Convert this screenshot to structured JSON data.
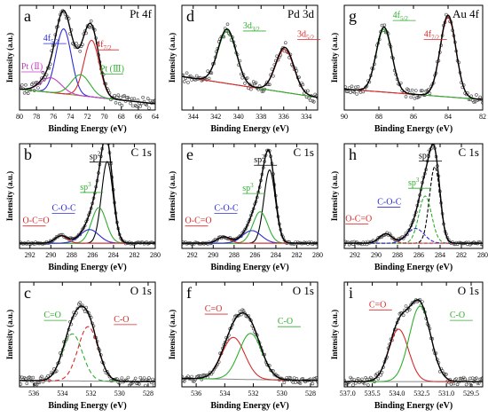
{
  "figure": {
    "ylabel": "Intensity (a.u.)",
    "xlabel": "Binding Energy (eV)"
  },
  "chart_data": [
    {
      "id": "a",
      "type": "line",
      "title": "Pt 4f",
      "xlabel": "Binding Energy (eV)",
      "ylabel": "Intensity (a.u.)",
      "xlim": [
        80,
        64
      ],
      "xticks": [
        80,
        78,
        76,
        74,
        72,
        70,
        68,
        66,
        64
      ],
      "ylim": [
        0,
        1
      ],
      "series": [
        {
          "color": "#000000",
          "kind": "envelope",
          "peaks": [
            {
              "c": 74.8,
              "h": 0.68,
              "w": 0.9
            },
            {
              "c": 71.5,
              "h": 0.58,
              "w": 0.9
            },
            {
              "c": 76.3,
              "h": 0.16,
              "w": 1.2
            },
            {
              "c": 72.8,
              "h": 0.22,
              "w": 1.1
            }
          ]
        },
        {
          "color": "#2b2bd6",
          "kind": "peak",
          "peaks": [
            {
              "c": 74.8,
              "h": 0.62,
              "w": 0.9
            }
          ]
        },
        {
          "color": "#d62a2a",
          "kind": "peak",
          "peaks": [
            {
              "c": 71.5,
              "h": 0.54,
              "w": 0.9
            }
          ]
        },
        {
          "color": "#c23ec2",
          "kind": "peak",
          "peaks": [
            {
              "c": 76.3,
              "h": 0.14,
              "w": 1.2
            }
          ]
        },
        {
          "color": "#2fae2f",
          "kind": "peak",
          "peaks": [
            {
              "c": 72.8,
              "h": 0.2,
              "w": 1.1
            }
          ]
        }
      ],
      "baseline": {
        "color": "#8a8a3a",
        "start": 0.2,
        "end": 0.06
      },
      "noise": 0.05,
      "annotations": [
        {
          "text": "4f",
          "sub": "5/2",
          "color": "#2b2bd6",
          "x": 77.2,
          "y": 0.66
        },
        {
          "text": "4f",
          "sub": "7/2",
          "color": "#d62a2a",
          "x": 71.0,
          "y": 0.6
        },
        {
          "text": "Pt (Ⅱ)",
          "color": "#c23ec2",
          "x": 79.8,
          "y": 0.39
        },
        {
          "text": "Pt (Ⅲ)",
          "color": "#2fae2f",
          "x": 70.5,
          "y": 0.37
        }
      ]
    },
    {
      "id": "d",
      "type": "line",
      "title": "Pd 3d",
      "xlabel": "Binding Energy (eV)",
      "ylabel": "Intensity (a.u.)",
      "xlim": [
        345,
        333
      ],
      "xticks": [
        344,
        342,
        340,
        338,
        336,
        334
      ],
      "ylim": [
        0,
        1
      ],
      "series": [
        {
          "color": "#000000",
          "kind": "envelope",
          "peaks": [
            {
              "c": 341.0,
              "h": 0.52,
              "w": 0.8
            },
            {
              "c": 335.9,
              "h": 0.43,
              "w": 0.8
            }
          ]
        },
        {
          "color": "#2fae2f",
          "kind": "peak",
          "peaks": [
            {
              "c": 341.0,
              "h": 0.5,
              "w": 0.8
            }
          ]
        },
        {
          "color": "#d62a2a",
          "kind": "peak",
          "peaks": [
            {
              "c": 335.9,
              "h": 0.41,
              "w": 0.8
            }
          ]
        }
      ],
      "baseline": {
        "color": "#8a3a3a",
        "start": 0.32,
        "end": 0.12
      },
      "noise": 0.05,
      "annotations": [
        {
          "text": "3d",
          "sub": "3/2",
          "color": "#2fae2f",
          "x": 339.6,
          "y": 0.78
        },
        {
          "text": "3d",
          "sub": "5/2",
          "color": "#d62a2a",
          "x": 334.8,
          "y": 0.7
        }
      ]
    },
    {
      "id": "g",
      "type": "line",
      "title": "Au 4f",
      "xlabel": "Binding Energy (eV)",
      "ylabel": "Intensity (a.u.)",
      "xlim": [
        90,
        82
      ],
      "xticks": [
        90,
        88,
        86,
        84,
        82
      ],
      "ylim": [
        0,
        1
      ],
      "series": [
        {
          "color": "#000000",
          "kind": "envelope",
          "peaks": [
            {
              "c": 87.7,
              "h": 0.62,
              "w": 0.45
            },
            {
              "c": 84.0,
              "h": 0.78,
              "w": 0.45
            }
          ]
        },
        {
          "color": "#2fae2f",
          "kind": "peak",
          "peaks": [
            {
              "c": 87.7,
              "h": 0.6,
              "w": 0.45
            }
          ]
        },
        {
          "color": "#d62a2a",
          "kind": "peak",
          "peaks": [
            {
              "c": 84.0,
              "h": 0.76,
              "w": 0.45
            }
          ]
        }
      ],
      "baseline": {
        "color": "#8a3a3a",
        "start": 0.2,
        "end": 0.1
      },
      "noise": 0.04,
      "annotations": [
        {
          "text": "4f",
          "sub": "5/2",
          "color": "#2fae2f",
          "x": 87.2,
          "y": 0.88
        },
        {
          "text": "4f",
          "sub": "7/2",
          "color": "#d62a2a",
          "x": 85.4,
          "y": 0.7
        }
      ]
    },
    {
      "id": "b",
      "type": "line",
      "title": "C 1s",
      "xlabel": "Binding Energy (eV)",
      "ylabel": "Intensity (a.u.)",
      "xlim": [
        293,
        280
      ],
      "xticks": [
        292,
        290,
        288,
        286,
        284,
        282,
        280
      ],
      "ylim": [
        0,
        1
      ],
      "series": [
        {
          "color": "#000000",
          "kind": "envelope",
          "peaks": [
            {
              "c": 284.6,
              "h": 0.8,
              "w": 0.55
            },
            {
              "c": 285.4,
              "h": 0.34,
              "w": 0.7
            },
            {
              "c": 286.3,
              "h": 0.13,
              "w": 0.9
            },
            {
              "c": 289.0,
              "h": 0.07,
              "w": 0.6
            }
          ]
        },
        {
          "color": "#000000",
          "kind": "peak",
          "peaks": [
            {
              "c": 284.6,
              "h": 0.78,
              "w": 0.55
            }
          ]
        },
        {
          "color": "#2fae2f",
          "kind": "peak",
          "peaks": [
            {
              "c": 285.4,
              "h": 0.34,
              "w": 0.7
            }
          ]
        },
        {
          "color": "#2b2bd6",
          "kind": "peak",
          "peaks": [
            {
              "c": 286.3,
              "h": 0.13,
              "w": 0.9
            }
          ]
        },
        {
          "color": "#d62a2a",
          "kind": "peak",
          "peaks": [
            {
              "c": 289.0,
              "h": 0.07,
              "w": 0.6
            }
          ]
        }
      ],
      "baseline": {
        "color": "#888888",
        "start": 0.05,
        "end": 0.05
      },
      "noise": 0.01,
      "annotations": [
        {
          "text": "sp",
          "sup": "2",
          "color": "#000000",
          "x": 286.3,
          "y": 0.85
        },
        {
          "text": "sp",
          "sup": "3",
          "color": "#2fae2f",
          "x": 287.2,
          "y": 0.56
        },
        {
          "text": "C-O-C",
          "color": "#2b2bd6",
          "x": 289.9,
          "y": 0.36
        },
        {
          "text": "O-C=O",
          "color": "#d62a2a",
          "x": 292.7,
          "y": 0.24
        }
      ]
    },
    {
      "id": "e",
      "type": "line",
      "title": "C 1s",
      "xlabel": "Binding Energy (eV)",
      "ylabel": "Intensity (a.u.)",
      "xlim": [
        293,
        280
      ],
      "xticks": [
        292,
        290,
        288,
        286,
        284,
        282,
        280
      ],
      "ylim": [
        0,
        1
      ],
      "series": [
        {
          "color": "#000000",
          "kind": "envelope",
          "peaks": [
            {
              "c": 284.6,
              "h": 0.72,
              "w": 0.55
            },
            {
              "c": 285.5,
              "h": 0.3,
              "w": 0.7
            },
            {
              "c": 286.3,
              "h": 0.12,
              "w": 0.9
            },
            {
              "c": 289.0,
              "h": 0.06,
              "w": 0.6
            }
          ]
        },
        {
          "color": "#000000",
          "kind": "peak",
          "peaks": [
            {
              "c": 284.6,
              "h": 0.7,
              "w": 0.55
            }
          ]
        },
        {
          "color": "#2fae2f",
          "kind": "peak",
          "peaks": [
            {
              "c": 285.5,
              "h": 0.3,
              "w": 0.7
            }
          ]
        },
        {
          "color": "#2b2bd6",
          "kind": "peak",
          "peaks": [
            {
              "c": 286.3,
              "h": 0.12,
              "w": 0.9
            }
          ]
        },
        {
          "color": "#d62a2a",
          "kind": "peak",
          "peaks": [
            {
              "c": 289.0,
              "h": 0.06,
              "w": 0.6
            }
          ]
        }
      ],
      "baseline": {
        "color": "#888888",
        "start": 0.05,
        "end": 0.05
      },
      "noise": 0.01,
      "annotations": [
        {
          "text": "sp",
          "sup": "2",
          "color": "#000000",
          "x": 286.1,
          "y": 0.82
        },
        {
          "text": "sp",
          "sup": "3",
          "color": "#2fae2f",
          "x": 287.2,
          "y": 0.55
        },
        {
          "text": "C-O-C",
          "color": "#2b2bd6",
          "x": 289.9,
          "y": 0.36
        },
        {
          "text": "O-C=O",
          "color": "#d62a2a",
          "x": 292.7,
          "y": 0.24
        }
      ]
    },
    {
      "id": "h",
      "type": "line",
      "title": "C 1s",
      "xlabel": "Binding Energy (eV)",
      "ylabel": "Intensity (a.u.)",
      "xlim": [
        293,
        280
      ],
      "xticks": [
        292,
        290,
        288,
        286,
        284,
        282,
        280
      ],
      "ylim": [
        0,
        1
      ],
      "series": [
        {
          "color": "#000000",
          "kind": "envelope",
          "peaks": [
            {
              "c": 284.5,
              "h": 0.75,
              "w": 0.5
            },
            {
              "c": 285.4,
              "h": 0.46,
              "w": 0.6
            },
            {
              "c": 286.3,
              "h": 0.14,
              "w": 0.8
            },
            {
              "c": 289.1,
              "h": 0.09,
              "w": 0.6
            }
          ]
        },
        {
          "color": "#000000",
          "kind": "peak",
          "dash": "4 2",
          "peaks": [
            {
              "c": 284.5,
              "h": 0.73,
              "w": 0.5
            }
          ]
        },
        {
          "color": "#2fae2f",
          "kind": "peak",
          "dash": "4 2",
          "peaks": [
            {
              "c": 285.4,
              "h": 0.45,
              "w": 0.6
            }
          ]
        },
        {
          "color": "#2b2bd6",
          "kind": "peak",
          "dash": "4 2",
          "peaks": [
            {
              "c": 286.3,
              "h": 0.14,
              "w": 0.8
            }
          ]
        },
        {
          "color": "#d62a2a",
          "kind": "peak",
          "dash": "4 2",
          "peaks": [
            {
              "c": 289.1,
              "h": 0.09,
              "w": 0.6
            }
          ]
        }
      ],
      "baseline": {
        "color": "#888888",
        "start": 0.05,
        "end": 0.05
      },
      "noise": 0.015,
      "annotations": [
        {
          "text": "sp",
          "sup": "2",
          "color": "#000000",
          "x": 286.0,
          "y": 0.86
        },
        {
          "text": "sp",
          "sup": "3",
          "color": "#2fae2f",
          "x": 287.0,
          "y": 0.6
        },
        {
          "text": "C-O-C",
          "color": "#2b2bd6",
          "x": 289.9,
          "y": 0.42
        },
        {
          "text": "O-C=O",
          "color": "#d62a2a",
          "x": 292.9,
          "y": 0.26
        }
      ]
    },
    {
      "id": "c",
      "type": "line",
      "title": "O 1s",
      "xlabel": "Binding Energy (eV)",
      "ylabel": "Intensity (a.u.)",
      "xlim": [
        537,
        527.5
      ],
      "xticks": [
        536,
        534,
        532,
        530,
        528
      ],
      "ylim": [
        0,
        1
      ],
      "series": [
        {
          "color": "#000000",
          "kind": "envelope",
          "peaks": [
            {
              "c": 533.3,
              "h": 0.45,
              "w": 0.7
            },
            {
              "c": 532.2,
              "h": 0.52,
              "w": 0.7
            }
          ]
        },
        {
          "color": "#2fae2f",
          "kind": "peak",
          "dash": "5 3",
          "peaks": [
            {
              "c": 533.3,
              "h": 0.45,
              "w": 0.7
            }
          ]
        },
        {
          "color": "#d62a2a",
          "kind": "peak",
          "dash": "5 3",
          "peaks": [
            {
              "c": 532.2,
              "h": 0.52,
              "w": 0.7
            }
          ]
        }
      ],
      "baseline": {
        "color": "#888888",
        "start": 0.06,
        "end": 0.05
      },
      "noise": 0.04,
      "annotations": [
        {
          "text": "C=O",
          "color": "#2fae2f",
          "x": 535.3,
          "y": 0.66
        },
        {
          "text": "C-O",
          "color": "#d62a2a",
          "x": 530.4,
          "y": 0.62
        }
      ]
    },
    {
      "id": "f",
      "type": "line",
      "title": "O 1s",
      "xlabel": "Binding Energy (eV)",
      "ylabel": "Intensity (a.u.)",
      "xlim": [
        537,
        527.5
      ],
      "xticks": [
        536,
        534,
        532,
        530,
        528
      ],
      "ylim": [
        0,
        1
      ],
      "series": [
        {
          "color": "#000000",
          "kind": "envelope",
          "peaks": [
            {
              "c": 533.4,
              "h": 0.4,
              "w": 0.8
            },
            {
              "c": 532.2,
              "h": 0.44,
              "w": 0.8
            }
          ]
        },
        {
          "color": "#d62a2a",
          "kind": "peak",
          "peaks": [
            {
              "c": 533.4,
              "h": 0.4,
              "w": 0.8
            }
          ]
        },
        {
          "color": "#2fae2f",
          "kind": "peak",
          "peaks": [
            {
              "c": 532.2,
              "h": 0.44,
              "w": 0.8
            }
          ]
        }
      ],
      "baseline": {
        "color": "#888888",
        "start": 0.08,
        "end": 0.06
      },
      "noise": 0.03,
      "annotations": [
        {
          "text": "C=O",
          "color": "#d62a2a",
          "x": 535.4,
          "y": 0.72
        },
        {
          "text": "C-O",
          "color": "#2fae2f",
          "x": 530.3,
          "y": 0.6
        }
      ]
    },
    {
      "id": "i",
      "type": "line",
      "title": "O 1s",
      "xlabel": "Binding Energy (eV)",
      "ylabel": "Intensity (a.u.)",
      "xlim": [
        537.2,
        528.8
      ],
      "xticks": [
        537.0,
        535.5,
        534.0,
        532.5,
        531.0,
        529.5
      ],
      "ylim": [
        0,
        1
      ],
      "series": [
        {
          "color": "#000000",
          "kind": "envelope",
          "peaks": [
            {
              "c": 533.9,
              "h": 0.5,
              "w": 0.6
            },
            {
              "c": 532.6,
              "h": 0.72,
              "w": 0.65
            }
          ]
        },
        {
          "color": "#d62a2a",
          "kind": "peak",
          "peaks": [
            {
              "c": 533.9,
              "h": 0.5,
              "w": 0.6
            }
          ]
        },
        {
          "color": "#2fae2f",
          "kind": "peak",
          "peaks": [
            {
              "c": 532.6,
              "h": 0.72,
              "w": 0.65
            }
          ]
        }
      ],
      "baseline": {
        "color": "#888888",
        "start": 0.05,
        "end": 0.05
      },
      "noise": 0.04,
      "annotations": [
        {
          "text": "C=O",
          "color": "#d62a2a",
          "x": 535.7,
          "y": 0.76
        },
        {
          "text": "C-O",
          "color": "#2fae2f",
          "x": 530.8,
          "y": 0.66
        }
      ]
    }
  ]
}
